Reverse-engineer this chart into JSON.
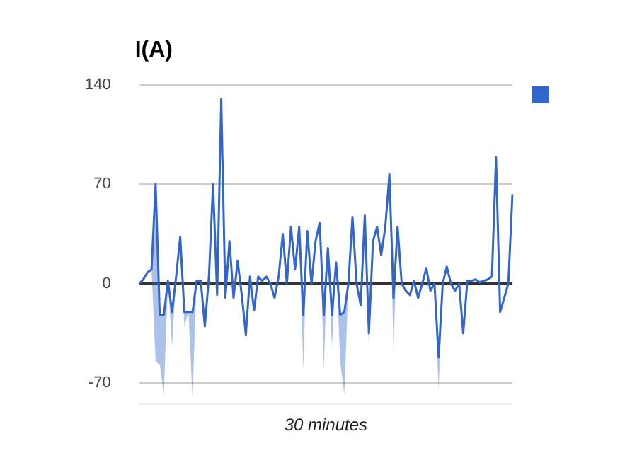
{
  "chart_data": {
    "type": "line",
    "title": "I(A)",
    "xlabel": "30 minutes",
    "categories": [
      null,
      null,
      null,
      null,
      null,
      null,
      null,
      null,
      null,
      null,
      null,
      null,
      null,
      null,
      null,
      null,
      null,
      null,
      null,
      null,
      null,
      null,
      null,
      null,
      null,
      null,
      null,
      null,
      null,
      null,
      null,
      null,
      null,
      null,
      null,
      null,
      null,
      null,
      null,
      null,
      null,
      null,
      null,
      null,
      null,
      null,
      null,
      null,
      null,
      null,
      null,
      null,
      null,
      null,
      null,
      null,
      null,
      null,
      null,
      null,
      null,
      null,
      null,
      null,
      null,
      null,
      null,
      null,
      null,
      null,
      null,
      null,
      null,
      null,
      null,
      null,
      null,
      null,
      null,
      null,
      null,
      null,
      null,
      null,
      null,
      null,
      null,
      null,
      null,
      null,
      null,
      null
    ],
    "series": [
      {
        "color": "#3366cc",
        "values": [
          0,
          3,
          8,
          10,
          70,
          -22,
          -22,
          2,
          -20,
          5,
          33,
          -20,
          -20,
          -20,
          2,
          2,
          -30,
          5,
          70,
          -8,
          130,
          -10,
          30,
          -10,
          16,
          -8,
          -36,
          5,
          -19,
          5,
          2,
          5,
          0,
          -10,
          5,
          35,
          0,
          40,
          10,
          40,
          -22,
          37,
          0,
          30,
          43,
          -22,
          25,
          -22,
          15,
          -22,
          -20,
          0,
          47,
          0,
          -15,
          48,
          -35,
          30,
          40,
          20,
          40,
          77,
          -10,
          40,
          0,
          -5,
          -8,
          2,
          -10,
          0,
          11,
          -5,
          0,
          -52,
          0,
          12,
          0,
          -5,
          0,
          -35,
          2,
          2,
          3,
          1,
          2,
          3,
          5,
          89,
          -20,
          -10,
          0,
          63
        ],
        "lower": [
          0,
          3,
          8,
          10,
          -55,
          -57,
          -78,
          2,
          -44,
          5,
          33,
          -30,
          -20,
          -81,
          2,
          2,
          -30,
          5,
          70,
          -8,
          130,
          -10,
          30,
          -10,
          16,
          -8,
          -36,
          5,
          -19,
          5,
          2,
          5,
          0,
          -10,
          5,
          35,
          0,
          40,
          10,
          40,
          -61,
          37,
          0,
          30,
          43,
          -60,
          25,
          -45,
          15,
          -55,
          -78,
          0,
          47,
          0,
          -15,
          48,
          -45,
          30,
          40,
          20,
          40,
          77,
          -46,
          40,
          0,
          -5,
          -8,
          2,
          -10,
          0,
          11,
          -5,
          0,
          -75,
          0,
          12,
          0,
          -5,
          0,
          -35,
          2,
          2,
          3,
          1,
          2,
          3,
          5,
          89,
          -20,
          -10,
          0,
          63
        ],
        "upper": [
          0,
          3,
          8,
          10,
          70,
          -22,
          -22,
          2,
          -20,
          5,
          33,
          -20,
          -20,
          -20,
          2,
          2,
          -30,
          5,
          70,
          -8,
          130,
          -10,
          30,
          -10,
          16,
          -8,
          -36,
          5,
          -19,
          5,
          2,
          5,
          0,
          -10,
          5,
          35,
          0,
          40,
          10,
          40,
          -22,
          37,
          0,
          30,
          43,
          -22,
          25,
          -22,
          15,
          -22,
          -20,
          0,
          47,
          0,
          -15,
          48,
          -35,
          30,
          40,
          20,
          40,
          77,
          -10,
          40,
          0,
          -5,
          -8,
          2,
          -10,
          0,
          11,
          -5,
          0,
          -52,
          0,
          12,
          0,
          -5,
          0,
          -35,
          2,
          2,
          3,
          1,
          2,
          3,
          5,
          89,
          -20,
          -10,
          0,
          63
        ]
      }
    ],
    "ylim": [
      -85,
      140
    ],
    "yticks": [
      {
        "value": -85,
        "label": null
      },
      -70,
      0,
      70,
      140
    ],
    "grid": "y",
    "marker": "none",
    "line_style": "solid",
    "tick_labels": "y"
  }
}
